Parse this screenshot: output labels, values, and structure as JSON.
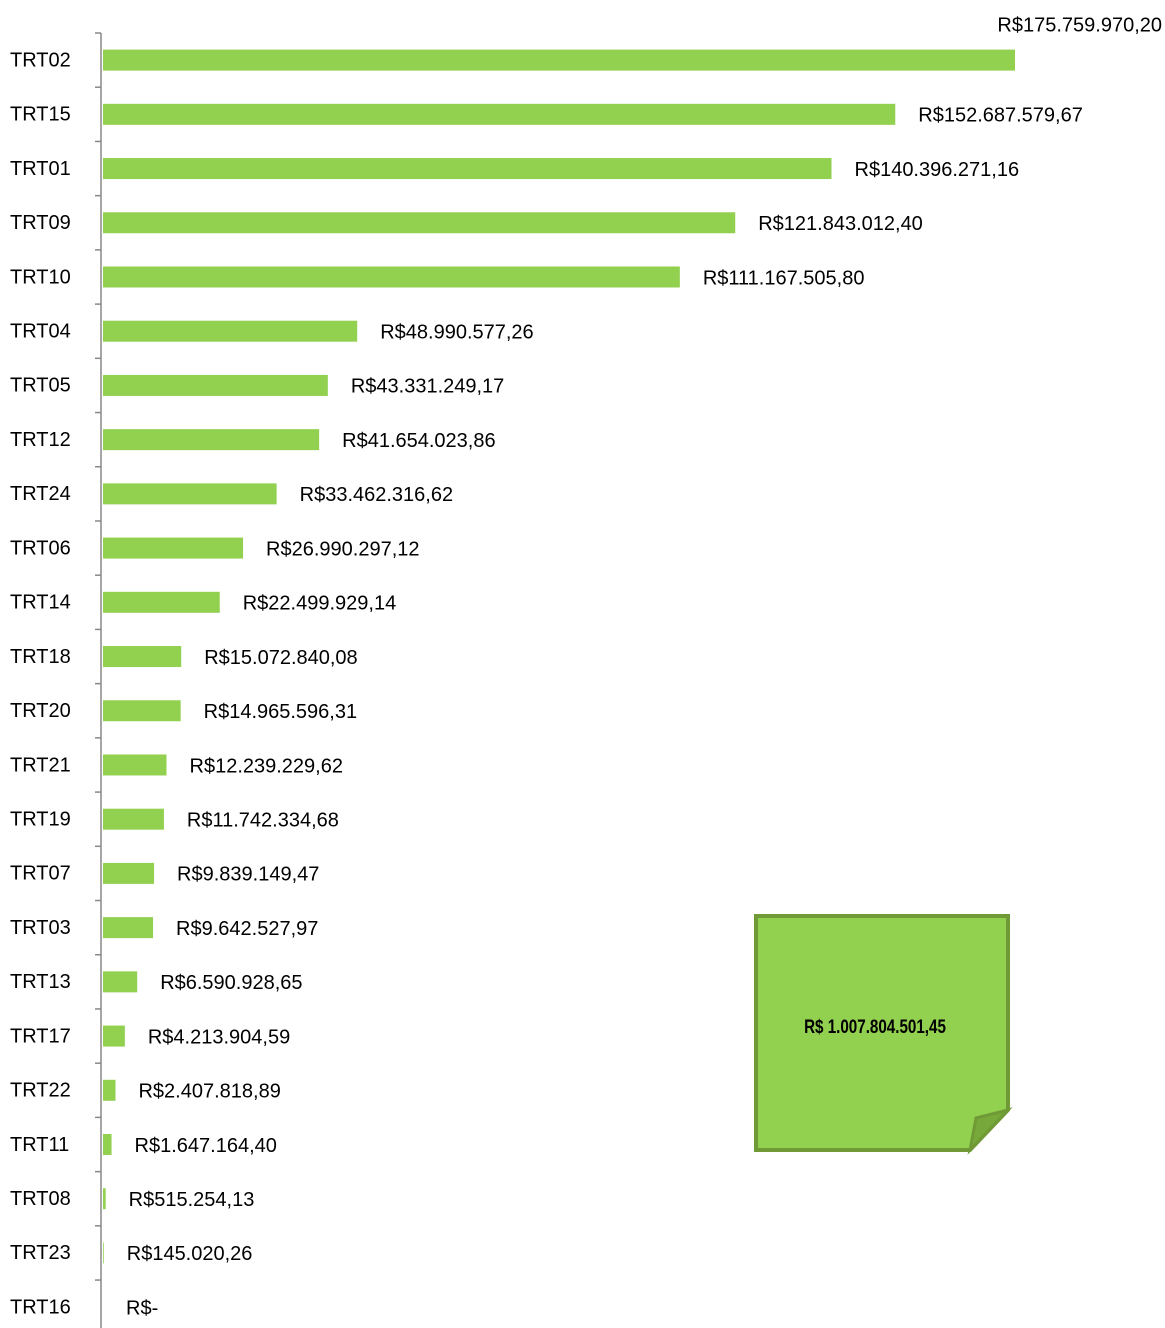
{
  "chart_data": {
    "type": "bar",
    "orientation": "horizontal",
    "color": "#92d050",
    "categories": [
      "TRT02",
      "TRT15",
      "TRT01",
      "TRT09",
      "TRT10",
      "TRT04",
      "TRT05",
      "TRT12",
      "TRT24",
      "TRT06",
      "TRT14",
      "TRT18",
      "TRT20",
      "TRT21",
      "TRT19",
      "TRT07",
      "TRT03",
      "TRT13",
      "TRT17",
      "TRT22",
      "TRT11",
      "TRT08",
      "TRT23",
      "TRT16"
    ],
    "values": [
      175759970.2,
      152687579.67,
      140396271.16,
      121843012.4,
      111167505.8,
      48990577.26,
      43331249.17,
      41654023.86,
      33462316.62,
      26990297.12,
      22499929.14,
      15072840.08,
      14965596.31,
      12239229.62,
      11742334.68,
      9839149.47,
      9642527.97,
      6590928.65,
      4213904.59,
      2407818.89,
      1647164.4,
      515254.13,
      145020.26,
      0
    ],
    "value_labels": [
      "R$175.759.970,20",
      "R$152.687.579,67",
      "R$140.396.271,16",
      "R$121.843.012,40",
      "R$111.167.505,80",
      "R$48.990.577,26",
      "R$43.331.249,17",
      "R$41.654.023,86",
      "R$33.462.316,62",
      "R$26.990.297,12",
      "R$22.499.929,14",
      "R$15.072.840,08",
      "R$14.965.596,31",
      "R$12.239.229,62",
      "R$11.742.334,68",
      "R$9.839.149,47",
      "R$9.642.527,97",
      "R$6.590.928,65",
      "R$4.213.904,59",
      "R$2.407.818,89",
      "R$1.647.164,40",
      "R$515.254,13",
      "R$145.020,26",
      "R$-"
    ],
    "annotation": "R$ 1.007.804.501,45"
  }
}
